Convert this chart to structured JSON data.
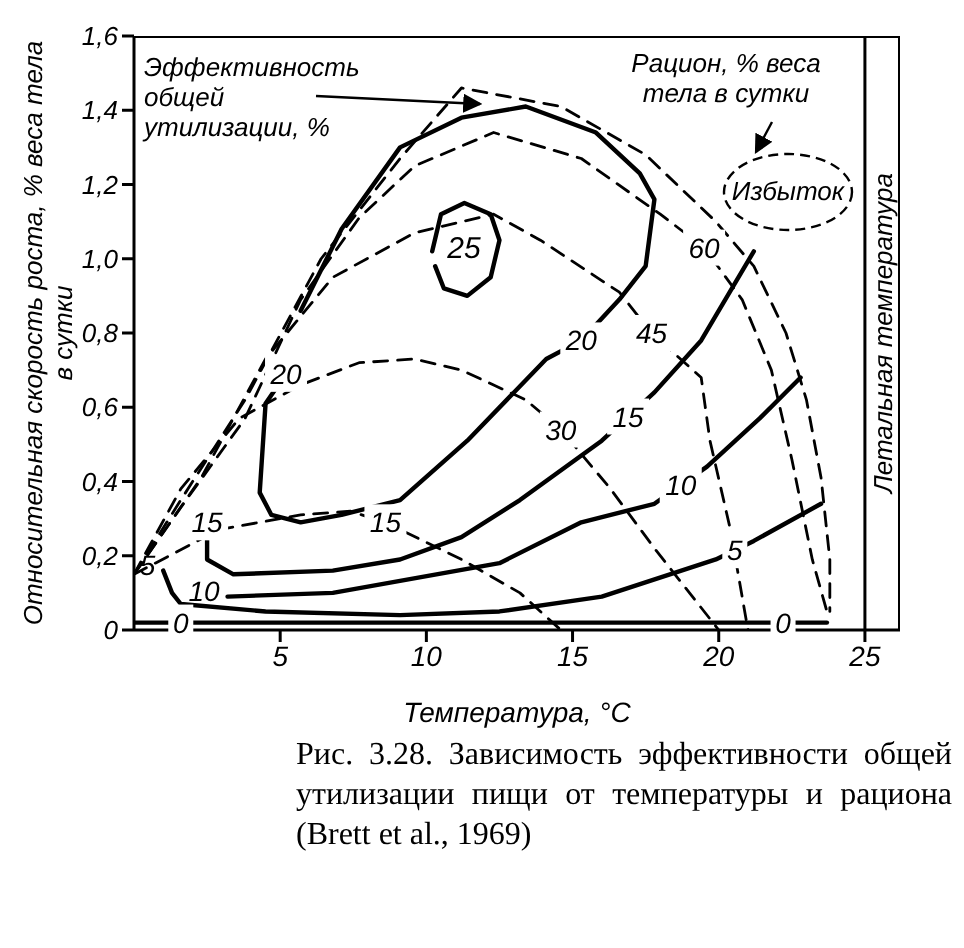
{
  "chart_data": {
    "type": "line",
    "xlabel": "Температура, °C",
    "ylabel": "Относительная скорость роста, % веса тела в сутки",
    "xlim": [
      0,
      26.2
    ],
    "ylim": [
      0,
      1.6
    ],
    "xticks": [
      5,
      10,
      15,
      20,
      25
    ],
    "yticks": [
      0,
      {
        "value": 0.2,
        "label": "0,2"
      },
      {
        "value": 0.4,
        "label": "0,4"
      },
      {
        "value": 0.6,
        "label": "0,6"
      },
      {
        "value": 0.8,
        "label": "0,8"
      },
      {
        "value": 1.0,
        "label": "1,0"
      },
      {
        "value": 1.2,
        "label": "1,2"
      },
      {
        "value": 1.4,
        "label": "1,4"
      },
      {
        "value": 1.6,
        "label": "1,6"
      }
    ],
    "marker": "none",
    "series": [
      {
        "line_style": "solid",
        "color": "#000000",
        "x": [
          10.2,
          10.5,
          11.3,
          12.2,
          12.5,
          12.2,
          11.4,
          10.6,
          10.3
        ],
        "values": [
          1.02,
          1.12,
          1.15,
          1.12,
          1.05,
          0.95,
          0.9,
          0.92,
          0.98
        ]
      },
      {
        "line_style": "solid",
        "color": "#000000",
        "x": [
          5.2,
          4.5,
          4.3,
          4.7,
          5.7,
          7.1,
          9.1,
          11.4,
          14.1,
          15.3,
          16.6,
          17.5,
          17.8,
          17.3,
          15.8,
          13.4,
          11.2,
          9.1,
          7.1,
          5.7
        ],
        "values": [
          0.69,
          0.61,
          0.37,
          0.31,
          0.29,
          0.31,
          0.35,
          0.51,
          0.73,
          0.78,
          0.89,
          0.98,
          1.16,
          1.23,
          1.34,
          1.41,
          1.38,
          1.3,
          1.08,
          0.86
        ]
      },
      {
        "line_style": "solid",
        "color": "#000000",
        "x": [
          2.5,
          2.5,
          3.4,
          6.8,
          9.1,
          11.2,
          13.2,
          16.0,
          17.8,
          19.4,
          21.2
        ],
        "values": [
          0.29,
          0.19,
          0.15,
          0.16,
          0.19,
          0.25,
          0.35,
          0.51,
          0.64,
          0.78,
          1.02
        ]
      },
      {
        "line_style": "solid",
        "color": "#000000",
        "x": [
          3.2,
          6.8,
          12.5,
          15.3,
          17.8,
          19.6,
          21.4,
          22.8
        ],
        "values": [
          0.09,
          0.1,
          0.18,
          0.29,
          0.34,
          0.44,
          0.57,
          0.68
        ]
      },
      {
        "line_style": "solid",
        "color": "#000000",
        "x": [
          1.0,
          1.3,
          1.6,
          4.5,
          9.1,
          12.5,
          16.0,
          19.9,
          21.2,
          23.5
        ],
        "values": [
          0.16,
          0.1,
          0.07,
          0.05,
          0.04,
          0.05,
          0.09,
          0.19,
          0.24,
          0.34
        ]
      },
      {
        "line_style": "solid",
        "color": "#000000",
        "x": [
          0,
          1.6,
          10,
          20,
          22.2,
          23.7
        ],
        "values": [
          0.02,
          0.02,
          0.02,
          0.02,
          0.02,
          0.02
        ]
      },
      {
        "line_style": "dashed",
        "color": "#000000",
        "x": [
          0,
          2.9,
          5.7,
          7.4,
          8.6,
          11.2,
          13.2,
          14.6
        ],
        "values": [
          0.15,
          0.27,
          0.31,
          0.32,
          0.29,
          0.19,
          0.1,
          0
        ]
      },
      {
        "line_style": "dashed",
        "color": "#000000",
        "x": [
          0,
          1.6,
          3.6,
          5.7,
          7.7,
          9.6,
          11.2,
          13.4,
          14.6,
          16.3,
          17.8,
          19.0,
          20.0
        ],
        "values": [
          0.15,
          0.38,
          0.57,
          0.66,
          0.72,
          0.73,
          0.7,
          0.62,
          0.54,
          0.38,
          0.22,
          0.1,
          0
        ]
      },
      {
        "line_style": "dashed",
        "color": "#000000",
        "x": [
          0,
          2.3,
          4.5,
          6.8,
          9.6,
          12.3,
          13.9,
          16.6,
          17.7,
          19.4,
          19.7,
          20.4,
          21.0
        ],
        "values": [
          0.15,
          0.41,
          0.73,
          0.95,
          1.07,
          1.12,
          1.05,
          0.91,
          0.8,
          0.68,
          0.51,
          0.27,
          0
        ]
      },
      {
        "line_style": "dashed",
        "color": "#000000",
        "x": [
          0,
          1.6,
          3.8,
          5.7,
          7.7,
          9.6,
          12.3,
          15.3,
          18.0,
          19.5,
          20.8,
          21.8,
          22.5,
          23.2,
          23.7
        ],
        "values": [
          0.15,
          0.33,
          0.57,
          0.89,
          1.11,
          1.25,
          1.34,
          1.27,
          1.12,
          1.03,
          0.89,
          0.7,
          0.46,
          0.19,
          0.05
        ]
      },
      {
        "line_style": "dashed",
        "color": "#000000",
        "x": [
          0,
          1.6,
          3.8,
          6.4,
          9.1,
          11.2,
          14.6,
          17.5,
          19.9,
          21.2,
          22.3,
          23.0,
          23.5,
          23.8,
          23.8
        ],
        "values": [
          0.15,
          0.35,
          0.62,
          1.0,
          1.27,
          1.46,
          1.41,
          1.28,
          1.1,
          0.98,
          0.8,
          0.62,
          0.41,
          0.19,
          0.05
        ]
      }
    ],
    "ref_lines": [
      {
        "axis": "x",
        "value": 25,
        "label": "Летальная температура",
        "color": "#000000"
      }
    ],
    "annotations": [
      "25",
      {
        "text": "20",
        "x": 5.2,
        "y": 0.69
      },
      {
        "text": "20",
        "x": 15.3,
        "y": 0.78
      },
      {
        "text": "15",
        "x": 2.5,
        "y": 0.29
      },
      {
        "text": "15",
        "x": 16.9,
        "y": 0.575
      },
      {
        "text": "10",
        "x": 3.2,
        "y": 0.09
      },
      {
        "text": "10",
        "x": 18.7,
        "y": 0.39
      },
      {
        "text": "5",
        "x": 1.0,
        "y": 0.16
      },
      {
        "text": "5",
        "x": 20.55,
        "y": 0.215
      },
      {
        "text": "0",
        "x": 1.6,
        "y": 0.02
      },
      {
        "text": "0",
        "x": 22.2,
        "y": 0.02
      },
      {
        "text": "15",
        "x": 8.6,
        "y": 0.29
      },
      {
        "text": "30",
        "x": 14.6,
        "y": 0.54
      },
      {
        "text": "45",
        "x": 17.7,
        "y": 0.8
      },
      {
        "text": "60",
        "x": 19.5,
        "y": 1.03
      },
      "Эффективность общей утилизации, %",
      "Рацион, % веса тела в сутки",
      "Избыток",
      "Рис. 3.28. Зависимость эффективности общей утилизации пищи от температуры и рациона (Brett et al., 1969)"
    ]
  }
}
